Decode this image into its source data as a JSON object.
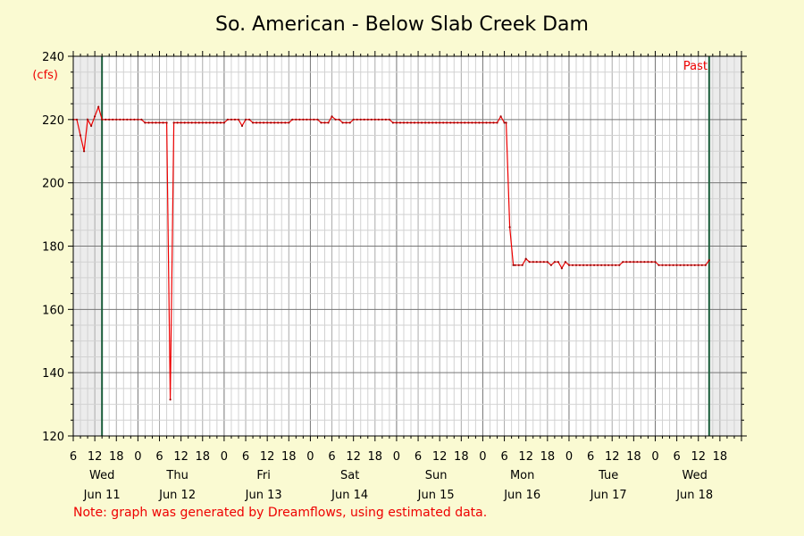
{
  "chart_data": {
    "type": "line",
    "title": "So. American - Below Slab Creek Dam",
    "ylabel": "(cfs)",
    "ylim": [
      120,
      240
    ],
    "yticks": [
      120,
      140,
      160,
      180,
      200,
      220,
      240
    ],
    "xrange_hours": [
      0,
      186
    ],
    "hour_tick_labels": [
      {
        "h": 0,
        "label": "6"
      },
      {
        "h": 6,
        "label": "12"
      },
      {
        "h": 12,
        "label": "18"
      },
      {
        "h": 18,
        "label": "0"
      },
      {
        "h": 24,
        "label": "6"
      },
      {
        "h": 30,
        "label": "12"
      },
      {
        "h": 36,
        "label": "18"
      },
      {
        "h": 42,
        "label": "0"
      },
      {
        "h": 48,
        "label": "6"
      },
      {
        "h": 54,
        "label": "12"
      },
      {
        "h": 60,
        "label": "18"
      },
      {
        "h": 66,
        "label": "0"
      },
      {
        "h": 72,
        "label": "6"
      },
      {
        "h": 78,
        "label": "12"
      },
      {
        "h": 84,
        "label": "18"
      },
      {
        "h": 90,
        "label": "0"
      },
      {
        "h": 96,
        "label": "6"
      },
      {
        "h": 102,
        "label": "12"
      },
      {
        "h": 108,
        "label": "18"
      },
      {
        "h": 114,
        "label": "0"
      },
      {
        "h": 120,
        "label": "6"
      },
      {
        "h": 126,
        "label": "12"
      },
      {
        "h": 132,
        "label": "18"
      },
      {
        "h": 138,
        "label": "0"
      },
      {
        "h": 144,
        "label": "6"
      },
      {
        "h": 150,
        "label": "12"
      },
      {
        "h": 156,
        "label": "18"
      },
      {
        "h": 162,
        "label": "0"
      },
      {
        "h": 168,
        "label": "6"
      },
      {
        "h": 174,
        "label": "12"
      },
      {
        "h": 180,
        "label": "18"
      }
    ],
    "day_labels": [
      {
        "h": 8,
        "day": "Wed",
        "date": "Jun 11"
      },
      {
        "h": 29,
        "day": "Thu",
        "date": "Jun 12"
      },
      {
        "h": 53,
        "day": "Fri",
        "date": "Jun 13"
      },
      {
        "h": 77,
        "day": "Sat",
        "date": "Jun 14"
      },
      {
        "h": 101,
        "day": "Sun",
        "date": "Jun 15"
      },
      {
        "h": 125,
        "day": "Mon",
        "date": "Jun 16"
      },
      {
        "h": 149,
        "day": "Tue",
        "date": "Jun 17"
      },
      {
        "h": 173,
        "day": "Wed",
        "date": "Jun 18"
      }
    ],
    "shaded_regions": [
      [
        0,
        8
      ],
      [
        177,
        186
      ]
    ],
    "marker_lines": [
      8,
      177
    ],
    "marker_label": "Past",
    "grid": true,
    "series": [
      {
        "color": "#ee0000",
        "points": [
          [
            0,
            220
          ],
          [
            1,
            220
          ],
          [
            2,
            215
          ],
          [
            3,
            210
          ],
          [
            4,
            220
          ],
          [
            5,
            218
          ],
          [
            6,
            221
          ],
          [
            7,
            224
          ],
          [
            8,
            220
          ],
          [
            9,
            220
          ],
          [
            10,
            220
          ],
          [
            11,
            220
          ],
          [
            12,
            220
          ],
          [
            13,
            220
          ],
          [
            14,
            220
          ],
          [
            15,
            220
          ],
          [
            16,
            220
          ],
          [
            17,
            220
          ],
          [
            18,
            220
          ],
          [
            19,
            220
          ],
          [
            20,
            219
          ],
          [
            21,
            219
          ],
          [
            22,
            219
          ],
          [
            23,
            219
          ],
          [
            24,
            219
          ],
          [
            25,
            219
          ],
          [
            26,
            219
          ],
          [
            27,
            131.5
          ],
          [
            28,
            219
          ],
          [
            29,
            219
          ],
          [
            30,
            219
          ],
          [
            31,
            219
          ],
          [
            32,
            219
          ],
          [
            33,
            219
          ],
          [
            34,
            219
          ],
          [
            35,
            219
          ],
          [
            36,
            219
          ],
          [
            37,
            219
          ],
          [
            38,
            219
          ],
          [
            39,
            219
          ],
          [
            40,
            219
          ],
          [
            41,
            219
          ],
          [
            42,
            219
          ],
          [
            43,
            220
          ],
          [
            44,
            220
          ],
          [
            45,
            220
          ],
          [
            46,
            220
          ],
          [
            47,
            218
          ],
          [
            48,
            220
          ],
          [
            49,
            220
          ],
          [
            50,
            219
          ],
          [
            51,
            219
          ],
          [
            52,
            219
          ],
          [
            53,
            219
          ],
          [
            54,
            219
          ],
          [
            55,
            219
          ],
          [
            56,
            219
          ],
          [
            57,
            219
          ],
          [
            58,
            219
          ],
          [
            59,
            219
          ],
          [
            60,
            219
          ],
          [
            61,
            220
          ],
          [
            62,
            220
          ],
          [
            63,
            220
          ],
          [
            64,
            220
          ],
          [
            65,
            220
          ],
          [
            66,
            220
          ],
          [
            67,
            220
          ],
          [
            68,
            220
          ],
          [
            69,
            219
          ],
          [
            70,
            219
          ],
          [
            71,
            219
          ],
          [
            72,
            221
          ],
          [
            73,
            220
          ],
          [
            74,
            220
          ],
          [
            75,
            219
          ],
          [
            76,
            219
          ],
          [
            77,
            219
          ],
          [
            78,
            220
          ],
          [
            79,
            220
          ],
          [
            80,
            220
          ],
          [
            81,
            220
          ],
          [
            82,
            220
          ],
          [
            83,
            220
          ],
          [
            84,
            220
          ],
          [
            85,
            220
          ],
          [
            86,
            220
          ],
          [
            87,
            220
          ],
          [
            88,
            220
          ],
          [
            89,
            219
          ],
          [
            90,
            219
          ],
          [
            91,
            219
          ],
          [
            92,
            219
          ],
          [
            93,
            219
          ],
          [
            94,
            219
          ],
          [
            95,
            219
          ],
          [
            96,
            219
          ],
          [
            97,
            219
          ],
          [
            98,
            219
          ],
          [
            99,
            219
          ],
          [
            100,
            219
          ],
          [
            101,
            219
          ],
          [
            102,
            219
          ],
          [
            103,
            219
          ],
          [
            104,
            219
          ],
          [
            105,
            219
          ],
          [
            106,
            219
          ],
          [
            107,
            219
          ],
          [
            108,
            219
          ],
          [
            109,
            219
          ],
          [
            110,
            219
          ],
          [
            111,
            219
          ],
          [
            112,
            219
          ],
          [
            113,
            219
          ],
          [
            114,
            219
          ],
          [
            115,
            219
          ],
          [
            116,
            219
          ],
          [
            117,
            219
          ],
          [
            118,
            219
          ],
          [
            119,
            221
          ],
          [
            120,
            219
          ],
          [
            120.5,
            219
          ],
          [
            121.5,
            186
          ],
          [
            122.5,
            174
          ],
          [
            123,
            174
          ],
          [
            124,
            174
          ],
          [
            125,
            174
          ],
          [
            126,
            176
          ],
          [
            127,
            175
          ],
          [
            128,
            175
          ],
          [
            129,
            175
          ],
          [
            130,
            175
          ],
          [
            131,
            175
          ],
          [
            132,
            175
          ],
          [
            133,
            174
          ],
          [
            134,
            175
          ],
          [
            135,
            175
          ],
          [
            136,
            173
          ],
          [
            137,
            175
          ],
          [
            138,
            174
          ],
          [
            139,
            174
          ],
          [
            140,
            174
          ],
          [
            141,
            174
          ],
          [
            142,
            174
          ],
          [
            143,
            174
          ],
          [
            144,
            174
          ],
          [
            145,
            174
          ],
          [
            146,
            174
          ],
          [
            147,
            174
          ],
          [
            148,
            174
          ],
          [
            149,
            174
          ],
          [
            150,
            174
          ],
          [
            151,
            174
          ],
          [
            152,
            174
          ],
          [
            153,
            175
          ],
          [
            154,
            175
          ],
          [
            155,
            175
          ],
          [
            156,
            175
          ],
          [
            157,
            175
          ],
          [
            158,
            175
          ],
          [
            159,
            175
          ],
          [
            160,
            175
          ],
          [
            161,
            175
          ],
          [
            162,
            175
          ],
          [
            163,
            174
          ],
          [
            164,
            174
          ],
          [
            165,
            174
          ],
          [
            166,
            174
          ],
          [
            167,
            174
          ],
          [
            168,
            174
          ],
          [
            169,
            174
          ],
          [
            170,
            174
          ],
          [
            171,
            174
          ],
          [
            172,
            174
          ],
          [
            173,
            174
          ],
          [
            174,
            174
          ],
          [
            175,
            174
          ],
          [
            176,
            174
          ],
          [
            177,
            175.5
          ]
        ]
      }
    ]
  },
  "note": "Note: graph was generated by Dreamflows, using estimated data."
}
